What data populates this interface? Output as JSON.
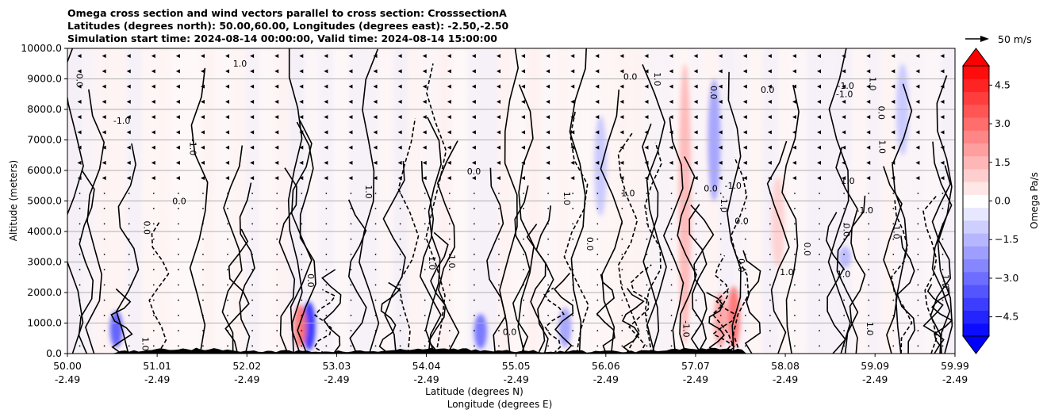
{
  "chart_data": {
    "type": "heatmap",
    "title_lines": [
      "Omega cross section and wind vectors parallel to cross section: CrosssectionA",
      "Latitudes (degrees north): 50.00,60.00, Longitudes (degrees east): -2.50,-2.50",
      "Simulation start time: 2024-08-14 00:00:00, Valid time: 2024-08-14 15:00:00"
    ],
    "xlabel_lines": [
      "Latitude (degrees N)",
      "Longitude (degrees E)"
    ],
    "ylabel": "Altitude (meters)",
    "ylim": [
      0,
      10000
    ],
    "y_ticks": [
      0,
      1000,
      2000,
      3000,
      4000,
      5000,
      6000,
      7000,
      8000,
      9000,
      10000
    ],
    "y_tick_labels": [
      "0.0",
      "1000.0",
      "2000.0",
      "3000.0",
      "4000.0",
      "5000.0",
      "6000.0",
      "7000.0",
      "8000.0",
      "9000.0",
      "10000.0"
    ],
    "xlim": [
      50.0,
      59.99
    ],
    "x_ticks": [
      {
        "lat": 50.0,
        "lat_label": "50.00",
        "lon_label": "-2.49"
      },
      {
        "lat": 51.01,
        "lat_label": "51.01",
        "lon_label": "-2.49"
      },
      {
        "lat": 52.02,
        "lat_label": "52.02",
        "lon_label": "-2.49"
      },
      {
        "lat": 53.03,
        "lat_label": "53.03",
        "lon_label": "-2.49"
      },
      {
        "lat": 54.04,
        "lat_label": "54.04",
        "lon_label": "-2.49"
      },
      {
        "lat": 55.05,
        "lat_label": "55.05",
        "lon_label": "-2.49"
      },
      {
        "lat": 56.06,
        "lat_label": "56.06",
        "lon_label": "-2.49"
      },
      {
        "lat": 57.07,
        "lat_label": "57.07",
        "lon_label": "-2.49"
      },
      {
        "lat": 58.08,
        "lat_label": "58.08",
        "lon_label": "-2.49"
      },
      {
        "lat": 59.09,
        "lat_label": "59.09",
        "lon_label": "-2.49"
      },
      {
        "lat": 59.99,
        "lat_label": "59.99",
        "lon_label": "-2.49"
      }
    ],
    "grid": "horizontal",
    "colorbar": {
      "label": "Omega Pa/s",
      "range": [
        -5.25,
        5.25
      ],
      "extend": "both",
      "ticks": [
        4.5,
        3.0,
        1.5,
        0.0,
        -1.5,
        -3.0,
        -4.5
      ],
      "tick_labels": [
        "4.5",
        "3.0",
        "1.5",
        "0.0",
        "−1.5",
        "−3.0",
        "−4.5"
      ],
      "colormap": "bwr",
      "color_low": "#0000ff",
      "color_mid": "#ffffff",
      "color_high": "#ff0000"
    },
    "quiver_key": {
      "value": 50,
      "label": "50 m/s"
    },
    "contour_labels_visible": [
      "0.0",
      "1.0",
      "-1.0"
    ],
    "wind_vectors": "mostly leftward arrows at upper levels, dots at lower levels",
    "terrain_color": "#000000",
    "omega_features": [
      {
        "lat": 50.55,
        "z_bottom": 200,
        "z_top": 1400,
        "omega": -3.5
      },
      {
        "lat": 52.72,
        "z_bottom": 100,
        "z_top": 1700,
        "omega": -4.5
      },
      {
        "lat": 52.62,
        "z_bottom": 200,
        "z_top": 1600,
        "omega": 3.0
      },
      {
        "lat": 54.65,
        "z_bottom": 150,
        "z_top": 1300,
        "omega": -3.0
      },
      {
        "lat": 55.6,
        "z_bottom": 200,
        "z_top": 1500,
        "omega": -2.0
      },
      {
        "lat": 56.95,
        "z_bottom": 300,
        "z_top": 9500,
        "omega": 1.5
      },
      {
        "lat": 57.28,
        "z_bottom": 5000,
        "z_top": 9000,
        "omega": -2.0
      },
      {
        "lat": 57.5,
        "z_bottom": 200,
        "z_top": 2200,
        "omega": 3.0
      },
      {
        "lat": 57.35,
        "z_bottom": 200,
        "z_top": 2000,
        "omega": 2.0
      },
      {
        "lat": 58.0,
        "z_bottom": 2800,
        "z_top": 5800,
        "omega": 1.0
      },
      {
        "lat": 58.75,
        "z_bottom": 2800,
        "z_top": 3500,
        "omega": -1.5
      },
      {
        "lat": 59.4,
        "z_bottom": 6500,
        "z_top": 9500,
        "omega": -1.2
      },
      {
        "lat": 56.0,
        "z_bottom": 4500,
        "z_top": 7800,
        "omega": -1.2
      }
    ]
  }
}
